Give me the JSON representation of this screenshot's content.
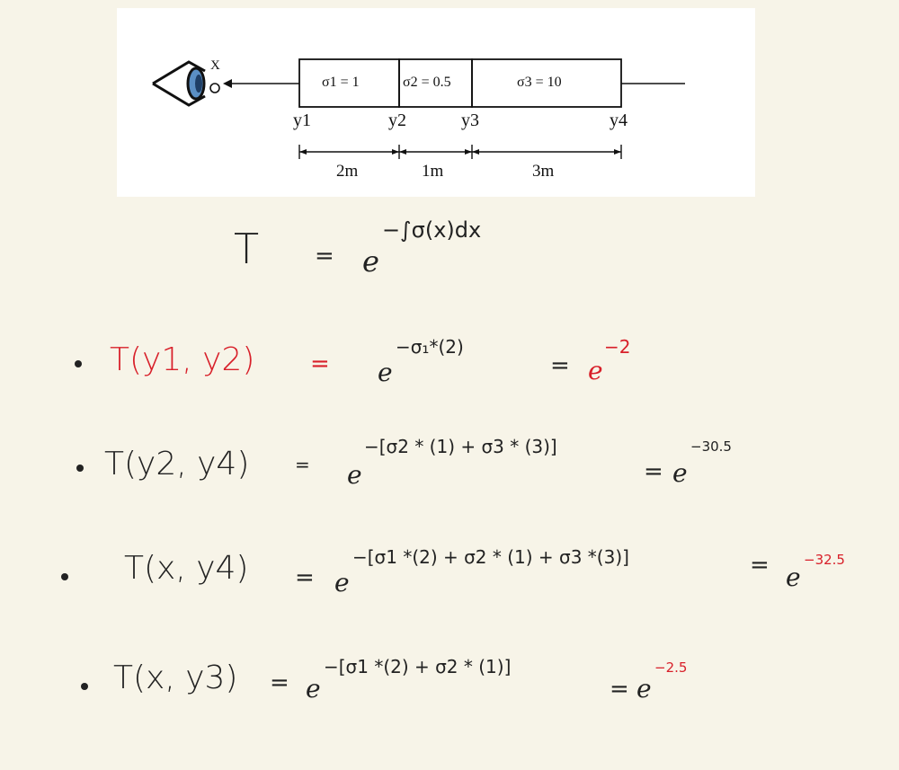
{
  "diagram": {
    "viewer_label": "X",
    "boxes": [
      {
        "label": "σ1 = 1"
      },
      {
        "label": "σ2 = 0.5"
      },
      {
        "label": "σ3 = 10"
      }
    ],
    "points": [
      "y1",
      "y2",
      "y3",
      "y4"
    ],
    "distances": [
      "2m",
      "1m",
      "3m"
    ]
  },
  "formula": {
    "lhs": "T",
    "eq": "=",
    "base": "e",
    "exponent": "−∫σ(x)dx"
  },
  "equations": [
    {
      "lhs": "T(y1, y2)",
      "eq": "=",
      "base": "e",
      "exponent": "−σ₁*(2)",
      "result_eq": "=",
      "result_base": "e",
      "result_exponent": "−2"
    },
    {
      "lhs": "T(y2, y4)",
      "eq": "=",
      "base": "e",
      "exponent": "−[σ2 * (1) + σ3 * (3)]",
      "result_eq": "=",
      "result_base": "e",
      "result_exponent": "−30.5"
    },
    {
      "lhs": "T(x, y4)",
      "eq": "=",
      "base": "e",
      "exponent": "−[σ1 *(2) + σ2 * (1) + σ3 *(3)]",
      "result_eq": "=",
      "result_base": "e",
      "result_exponent": "−32.5"
    },
    {
      "lhs": "T(x, y3)",
      "eq": "=",
      "base": "e",
      "exponent": "−[σ1 *(2) + σ2 * (1)]",
      "result_eq": "=",
      "result_base": "e",
      "result_exponent": "−2.5"
    }
  ],
  "colors": {
    "ink": "#222222",
    "red_ink": "#d8202a",
    "paper": "#f7f4e8"
  }
}
